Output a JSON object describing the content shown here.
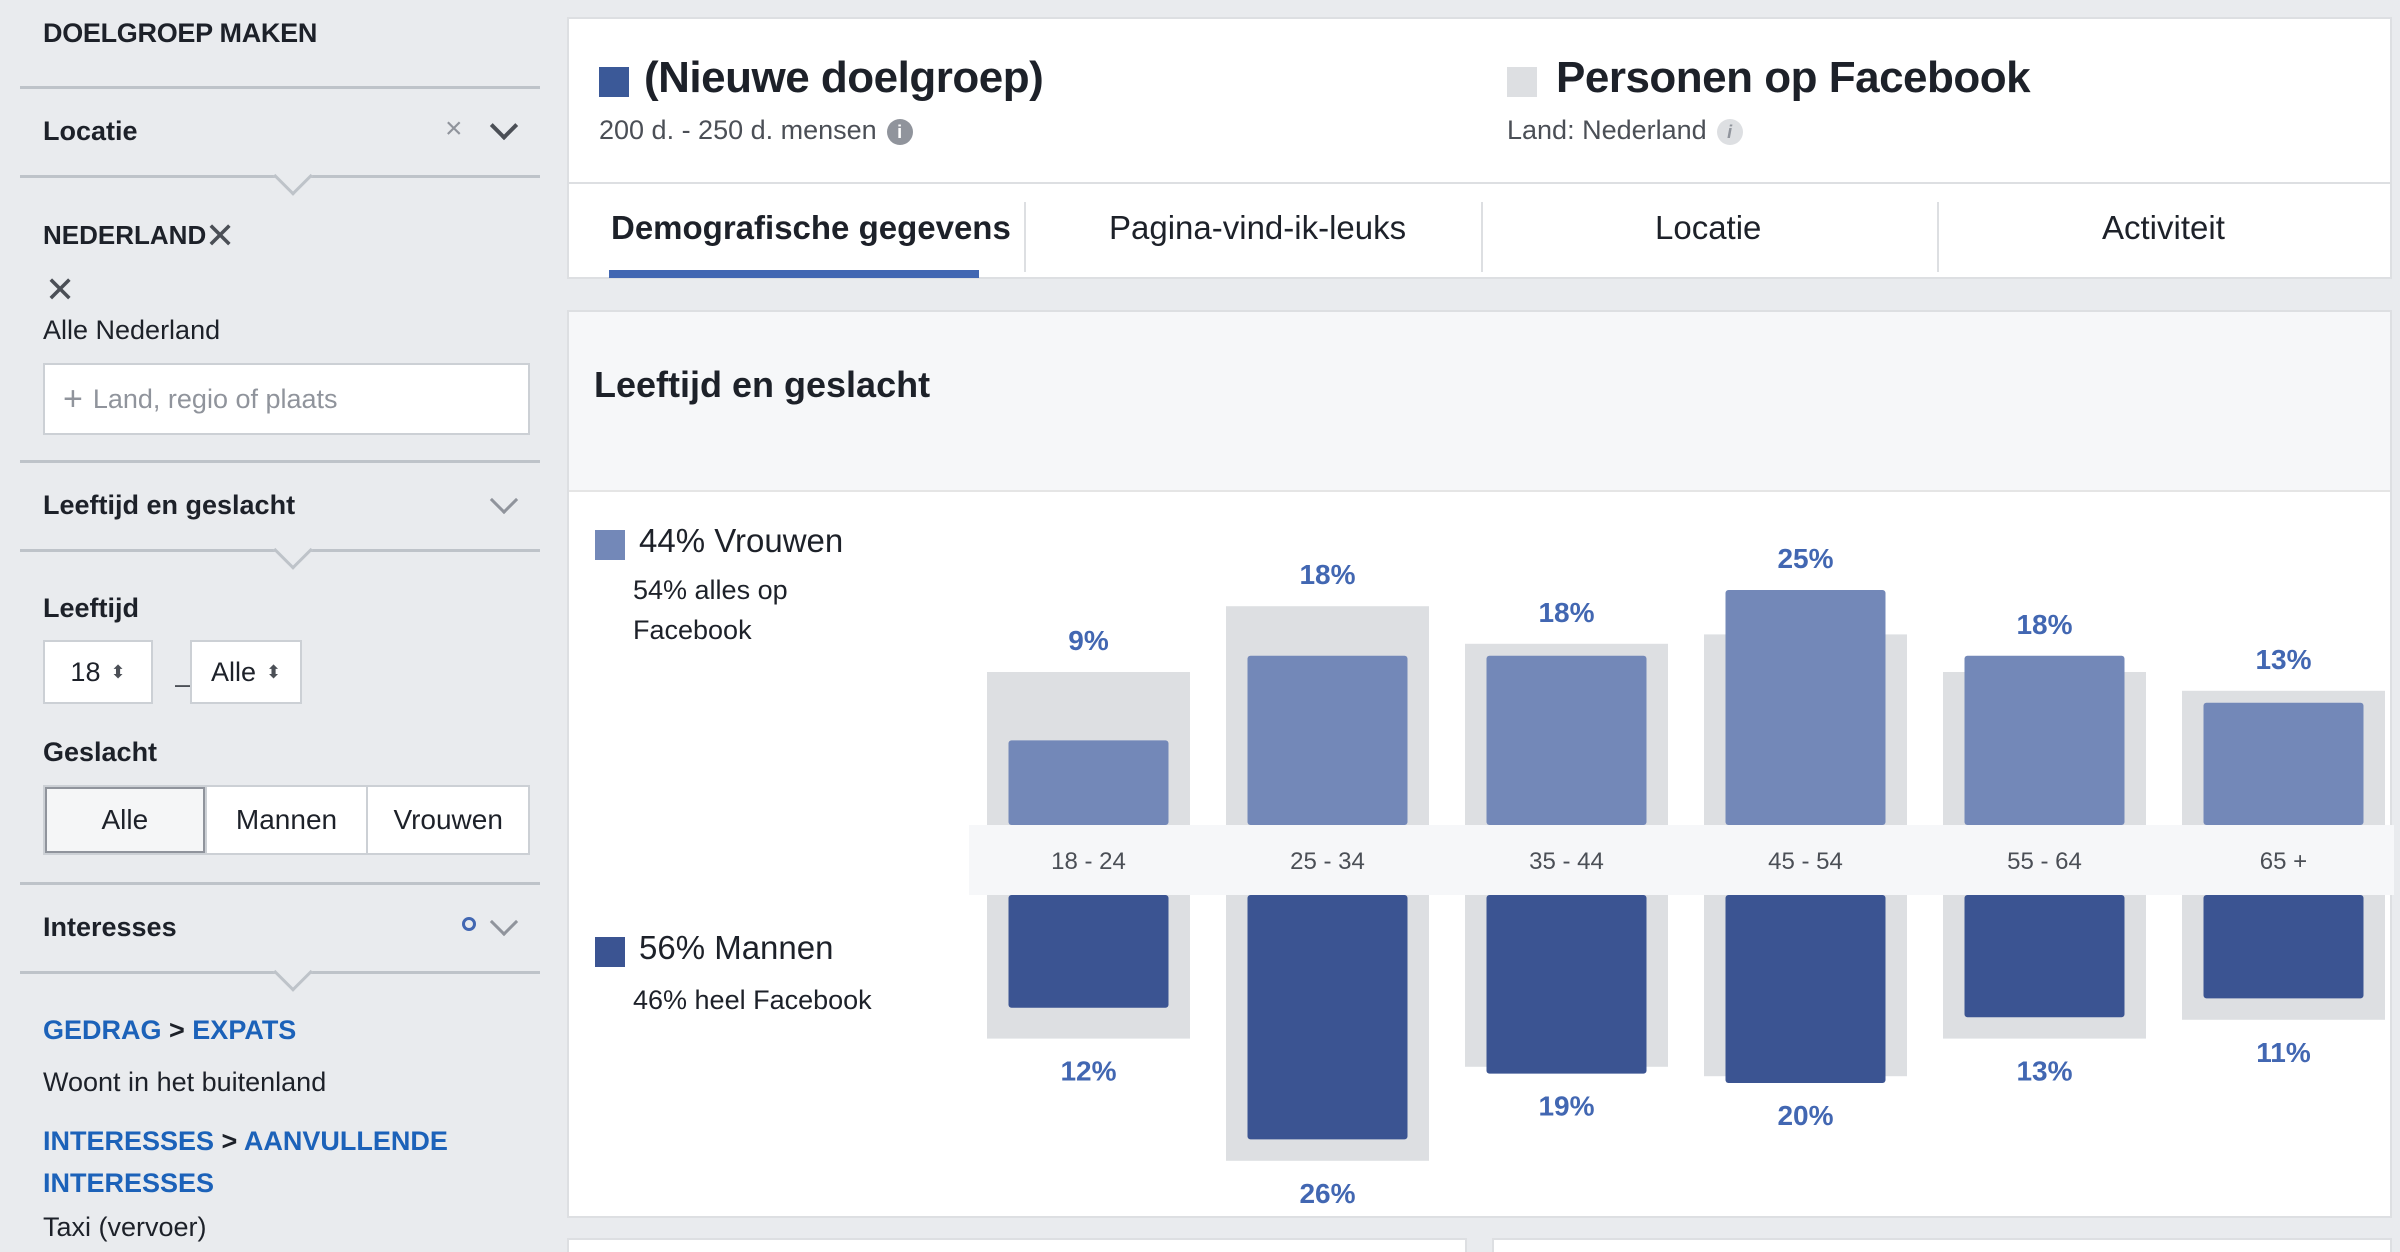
{
  "sidebar": {
    "title": "DOELGROEP MAKEN",
    "location": {
      "label": "Locatie",
      "country": "NEDERLAND",
      "region": "Alle Nederland",
      "input_placeholder": "Land, regio of plaats"
    },
    "age_gender": {
      "label": "Leeftijd en geslacht",
      "age_label": "Leeftijd",
      "age_min": "18",
      "age_max": "Alle",
      "gender_label": "Geslacht",
      "gender_options": [
        "Alle",
        "Mannen",
        "Vrouwen"
      ],
      "gender_selected": "Alle"
    },
    "interests": {
      "label": "Interesses",
      "items": [
        {
          "category": "GEDRAG",
          "subcategory": "EXPATS",
          "value": "Woont in het buitenland"
        },
        {
          "category": "INTERESSES",
          "subcategory": "AANVULLENDE INTERESSES",
          "value": "Taxi (vervoer)"
        }
      ]
    }
  },
  "header": {
    "audience": {
      "title": "(Nieuwe doelgroep)",
      "size": "200 d. - 250 d. mensen",
      "color": "#3b5998"
    },
    "comparison": {
      "title": "Personen op Facebook",
      "subtitle": "Land: Nederland",
      "color": "#dddfe2"
    }
  },
  "tabs": [
    {
      "label": "Demografische gegevens",
      "active": true
    },
    {
      "label": "Pagina-vind-ik-leuks",
      "active": false
    },
    {
      "label": "Locatie",
      "active": false
    },
    {
      "label": "Activiteit",
      "active": false
    }
  ],
  "chart_data": {
    "type": "bar",
    "title": "Leeftijd en geslacht",
    "categories": [
      "18 - 24",
      "25 - 34",
      "35 - 44",
      "45 - 54",
      "55 - 64",
      "65 +"
    ],
    "series": [
      {
        "name": "Vrouwen",
        "legend": "44% Vrouwen",
        "subtext": "54% alles op Facebook",
        "values": [
          9,
          18,
          18,
          25,
          18,
          13
        ],
        "direction": "up",
        "color": "#7388b8"
      },
      {
        "name": "Mannen",
        "legend": "56% Mannen",
        "subtext": "46% heel Facebook",
        "values": [
          12,
          26,
          19,
          20,
          13,
          11
        ],
        "direction": "down",
        "color": "#3b5492"
      }
    ],
    "baseline_series": {
      "up": [
        15,
        22,
        18,
        19,
        15,
        13
      ],
      "down": [
        14,
        27,
        17,
        18,
        14,
        12
      ],
      "color": "#dddfe2"
    },
    "value_suffix": "%"
  }
}
